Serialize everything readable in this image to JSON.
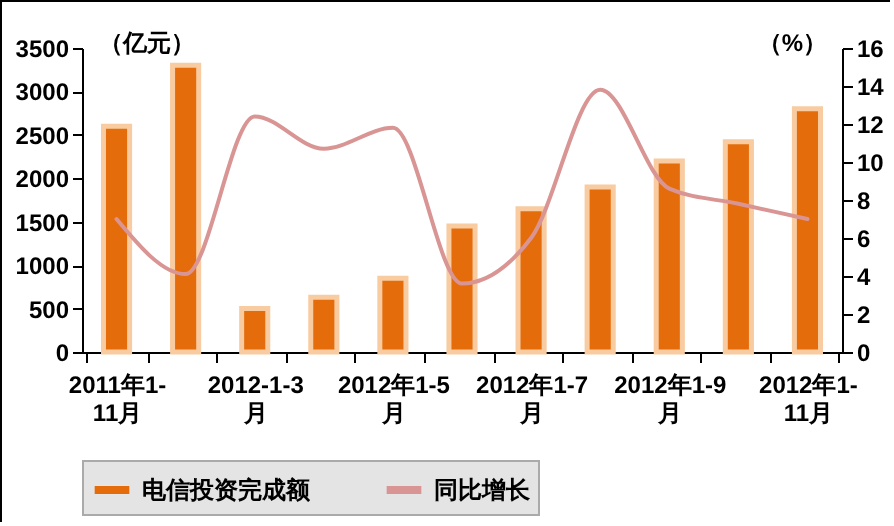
{
  "chart_data": {
    "type": "bar",
    "categories": [
      "2011年1-11月",
      null,
      "2012-1-3月",
      null,
      "2012年1-5月",
      null,
      "2012年1-7月",
      null,
      "2012年1-9月",
      null,
      "2012年1-11月"
    ],
    "series": [
      {
        "name": "电信投资完成额",
        "axis": "y",
        "color": "#e46c0a",
        "values": [
          2600,
          3300,
          500,
          630,
          850,
          1450,
          1650,
          1900,
          2200,
          2420,
          2800
        ]
      },
      {
        "name": "同比增长",
        "type": "line",
        "axis": "y2",
        "color": "#d99594",
        "values": [
          7.0,
          4.1,
          12.4,
          10.7,
          11.8,
          3.6,
          6.0,
          13.8,
          8.6,
          7.8,
          7.0
        ]
      }
    ],
    "ylabel": "（亿元）",
    "y2label": "（%）",
    "ylim": [
      0,
      3500
    ],
    "yticks": [
      0,
      500,
      1000,
      1500,
      2000,
      2500,
      3000,
      3500
    ],
    "y2lim": [
      0,
      16
    ],
    "y2ticks": [
      0,
      2,
      4,
      6,
      8,
      10,
      12,
      14,
      16
    ],
    "legend": "bottom",
    "grid": false
  }
}
